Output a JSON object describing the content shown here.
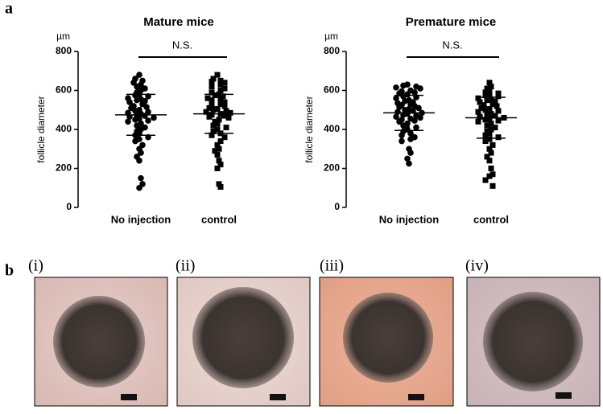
{
  "panel_labels": [
    "a",
    "b"
  ],
  "chart_data": [
    {
      "type": "dot",
      "title": "Mature mice",
      "unit": "µm",
      "y_label": "follicle diameter",
      "annotation": "N.S.",
      "categories": [
        "No injection",
        "control"
      ],
      "markers": [
        "circle",
        "square"
      ],
      "color": "#000000",
      "values": [
        [
          680,
          660,
          650,
          640,
          630,
          620,
          610,
          600,
          590,
          580,
          575,
          570,
          560,
          555,
          550,
          545,
          540,
          530,
          520,
          515,
          510,
          500,
          495,
          490,
          485,
          480,
          475,
          470,
          465,
          460,
          455,
          450,
          445,
          440,
          430,
          420,
          410,
          400,
          390,
          380,
          370,
          360,
          350,
          340,
          320,
          300,
          280,
          260,
          240,
          150,
          120,
          100
        ],
        [
          680,
          660,
          650,
          645,
          640,
          630,
          620,
          610,
          600,
          590,
          580,
          575,
          570,
          560,
          555,
          550,
          540,
          530,
          525,
          520,
          510,
          505,
          500,
          495,
          490,
          485,
          480,
          475,
          470,
          465,
          460,
          450,
          440,
          430,
          420,
          410,
          400,
          390,
          380,
          370,
          360,
          340,
          320,
          300,
          290,
          270,
          240,
          220,
          200,
          120,
          105
        ]
      ],
      "means": [
        475,
        480
      ],
      "sds": [
        105,
        100
      ],
      "ylim": [
        0,
        800
      ],
      "yticks": [
        0,
        200,
        400,
        600,
        800
      ]
    },
    {
      "type": "dot",
      "title": "Premature mice",
      "unit": "µm",
      "y_label": "follicle diameter",
      "annotation": "N.S.",
      "categories": [
        "No injection",
        "control"
      ],
      "markers": [
        "circle",
        "square"
      ],
      "color": "#000000",
      "values": [
        [
          630,
          625,
          620,
          615,
          610,
          600,
          595,
          590,
          585,
          580,
          570,
          565,
          560,
          550,
          545,
          540,
          535,
          530,
          525,
          520,
          515,
          510,
          505,
          500,
          495,
          490,
          485,
          480,
          475,
          470,
          465,
          460,
          455,
          450,
          445,
          440,
          430,
          420,
          410,
          400,
          390,
          380,
          370,
          360,
          350,
          340,
          300,
          280,
          250,
          225
        ],
        [
          640,
          620,
          610,
          600,
          590,
          585,
          580,
          575,
          570,
          560,
          555,
          550,
          545,
          540,
          530,
          525,
          520,
          510,
          505,
          500,
          495,
          490,
          480,
          475,
          470,
          465,
          460,
          455,
          450,
          445,
          440,
          430,
          420,
          410,
          400,
          390,
          380,
          370,
          360,
          350,
          340,
          320,
          300,
          280,
          260,
          240,
          200,
          170,
          160,
          140,
          110
        ]
      ],
      "means": [
        485,
        460
      ],
      "sds": [
        90,
        105
      ],
      "ylim": [
        0,
        800
      ],
      "yticks": [
        0,
        200,
        400,
        600,
        800
      ]
    }
  ],
  "images": [
    {
      "label": "(i)"
    },
    {
      "label": "(ii)"
    },
    {
      "label": "(iii)"
    },
    {
      "label": "(iv)"
    }
  ]
}
